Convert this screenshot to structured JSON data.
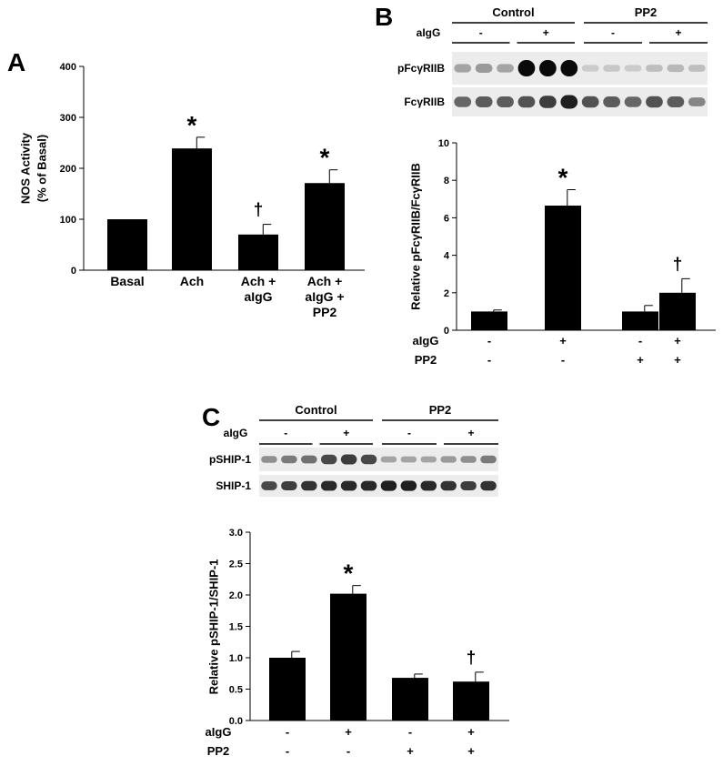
{
  "panels": {
    "A": {
      "letter": "A"
    },
    "B": {
      "letter": "B"
    },
    "C": {
      "letter": "C"
    }
  },
  "blot_b": {
    "group_labels": [
      "Control",
      "PP2"
    ],
    "treat_label": "aIgG",
    "treat_signs": [
      "-",
      "+",
      "-",
      "+"
    ],
    "rows": [
      {
        "label": "pFcγRIIB",
        "intensities": [
          0.25,
          0.3,
          0.25,
          1.0,
          1.0,
          1.0,
          0.06,
          0.08,
          0.06,
          0.12,
          0.15,
          0.12
        ]
      },
      {
        "label": "FcγRIIB",
        "intensities": [
          0.55,
          0.6,
          0.6,
          0.65,
          0.75,
          0.9,
          0.65,
          0.6,
          0.55,
          0.65,
          0.6,
          0.4
        ]
      }
    ]
  },
  "blot_c": {
    "group_labels": [
      "Control",
      "PP2"
    ],
    "treat_label": "aIgG",
    "treat_signs": [
      "-",
      "+",
      "-",
      "+"
    ],
    "rows": [
      {
        "label": "pSHIP-1",
        "intensities": [
          0.35,
          0.45,
          0.5,
          0.7,
          0.75,
          0.7,
          0.25,
          0.25,
          0.25,
          0.3,
          0.35,
          0.45
        ]
      },
      {
        "label": "SHIP-1",
        "intensities": [
          0.7,
          0.75,
          0.8,
          0.85,
          0.85,
          0.85,
          0.9,
          0.9,
          0.85,
          0.8,
          0.75,
          0.8
        ]
      }
    ]
  },
  "chart_data": [
    {
      "type": "bar",
      "panel": "A",
      "categories": [
        "Basal",
        "Ach",
        "Ach + aIgG",
        "Ach + aIgG + PP2"
      ],
      "category_lines": [
        [
          "Basal"
        ],
        [
          "Ach"
        ],
        [
          "Ach +",
          "aIgG"
        ],
        [
          "Ach +",
          "aIgG +",
          "PP2"
        ]
      ],
      "values": [
        100,
        239,
        70,
        171
      ],
      "errors": [
        0,
        22,
        20,
        26
      ],
      "annotations": [
        "",
        "*",
        "†",
        "*"
      ],
      "ylabel_lines": [
        "NOS Activity",
        "(% of Basal)"
      ],
      "yticks": [
        "0",
        "100",
        "200",
        "300",
        "400"
      ],
      "ylim": [
        0,
        400
      ],
      "grid": false,
      "bar_color": "#000000"
    },
    {
      "type": "bar",
      "panel": "B",
      "categories": [
        "-/-",
        "+/-",
        "-/+",
        "+/+"
      ],
      "values": [
        1.0,
        6.65,
        1.0,
        2.0
      ],
      "errors": [
        0.08,
        0.85,
        0.32,
        0.75
      ],
      "annotations": [
        "",
        "*",
        "",
        "†"
      ],
      "ylabel_lines": [
        "Relative pFcγRIIB/FcγRIIB"
      ],
      "yticks": [
        "0",
        "2",
        "4",
        "6",
        "8",
        "10"
      ],
      "ylim": [
        0,
        10
      ],
      "treatments": [
        {
          "label": "aIgG",
          "signs": [
            "-",
            "+",
            "-",
            "+"
          ]
        },
        {
          "label": "PP2",
          "signs": [
            "-",
            "-",
            "+",
            "+"
          ]
        }
      ],
      "grid": false,
      "bar_color": "#000000"
    },
    {
      "type": "bar",
      "panel": "C",
      "categories": [
        "-/-",
        "+/-",
        "-/+",
        "+/+"
      ],
      "values": [
        1.0,
        2.02,
        0.68,
        0.62
      ],
      "errors": [
        0.1,
        0.13,
        0.06,
        0.15
      ],
      "annotations": [
        "",
        "*",
        "",
        "†"
      ],
      "ylabel_lines": [
        "Relative pSHIP-1/SHIP-1"
      ],
      "yticks": [
        "0.0",
        "0.5",
        "1.0",
        "1.5",
        "2.0",
        "2.5",
        "3.0"
      ],
      "ylim": [
        0,
        3
      ],
      "treatments": [
        {
          "label": "aIgG",
          "signs": [
            "-",
            "+",
            "-",
            "+"
          ]
        },
        {
          "label": "PP2",
          "signs": [
            "-",
            "-",
            "+",
            "+"
          ]
        }
      ],
      "grid": false,
      "bar_color": "#000000"
    }
  ]
}
